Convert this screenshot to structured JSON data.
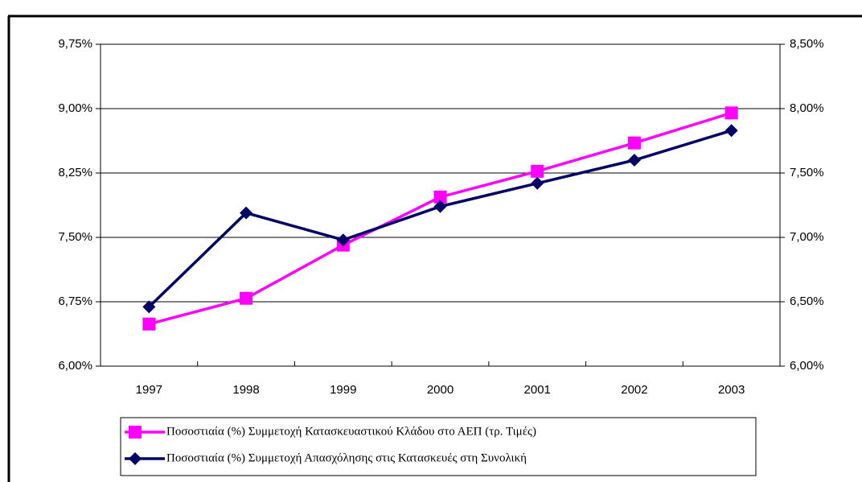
{
  "chart_data": {
    "type": "line",
    "categories": [
      "1997",
      "1998",
      "1999",
      "2000",
      "2001",
      "2002",
      "2003"
    ],
    "series": [
      {
        "name": "Ποσοστιαία (%) Συμμετοχή Κατασκευαστικού Κλάδου στο ΑΕΠ (τρ. Τιμές)",
        "color": "#ff00ff",
        "marker": "square",
        "axis": "y",
        "values": [
          6.49,
          6.79,
          7.41,
          7.97,
          8.27,
          8.6,
          8.95
        ]
      },
      {
        "name": "Ποσοστιαία (%) Συμμετοχή Απασχόλησης στις Κατασκευές στη Συνολική",
        "color": "#000066",
        "marker": "diamond",
        "axis": "y2",
        "values": [
          6.46,
          7.19,
          6.98,
          7.24,
          7.42,
          7.6,
          7.83
        ]
      }
    ],
    "ylim": [
      6.0,
      9.75
    ],
    "yticks": [
      {
        "value": 6.0,
        "label": "6,00%"
      },
      {
        "value": 6.75,
        "label": "6,75%"
      },
      {
        "value": 7.5,
        "label": "7,50%"
      },
      {
        "value": 8.25,
        "label": "8,25%"
      },
      {
        "value": 9.0,
        "label": "9,00%"
      },
      {
        "value": 9.75,
        "label": "9,75%"
      }
    ],
    "y2lim": [
      6.0,
      8.5
    ],
    "y2ticks": [
      {
        "value": 6.0,
        "label": "6,00%"
      },
      {
        "value": 6.5,
        "label": "6,50%"
      },
      {
        "value": 7.0,
        "label": "7,00%"
      },
      {
        "value": 7.5,
        "label": "7,50%"
      },
      {
        "value": 8.0,
        "label": "8,00%"
      },
      {
        "value": 8.5,
        "label": "8,50%"
      }
    ],
    "grid": true,
    "legend": "bottom"
  }
}
